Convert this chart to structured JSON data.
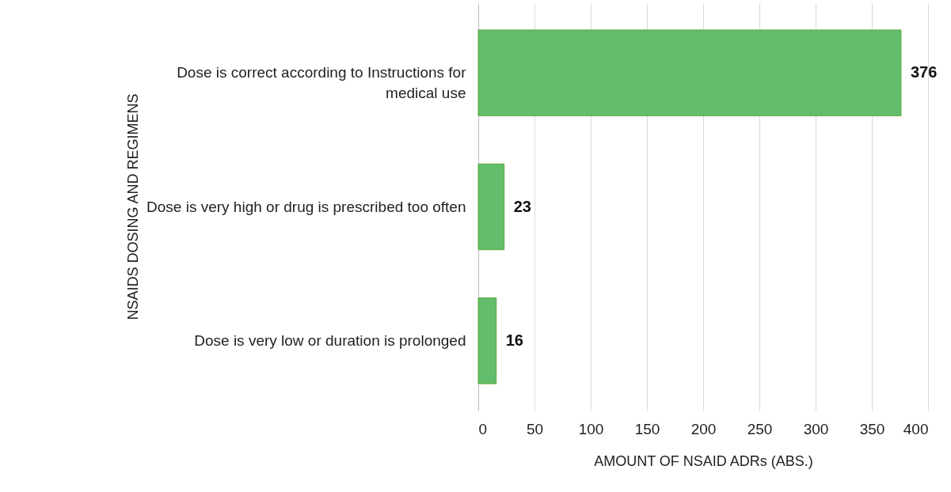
{
  "chart_data": {
    "type": "bar",
    "orientation": "horizontal",
    "categories": [
      "Dose is correct according to Instructions for medical use",
      "Dose is very high or drug is prescribed too often",
      "Dose is very low or duration is prolonged"
    ],
    "values": [
      376,
      23,
      16
    ],
    "color": "#62bd6d",
    "xlim": [
      0,
      400
    ],
    "xticks": [
      0,
      50,
      100,
      150,
      200,
      250,
      300,
      350,
      400
    ],
    "xlabel": "AMOUNT OF NSAID ADRs (ABS.)",
    "ylabel": "NSAIDS DOSING AND REGIMENS",
    "grid": "x",
    "data_labels": true
  }
}
